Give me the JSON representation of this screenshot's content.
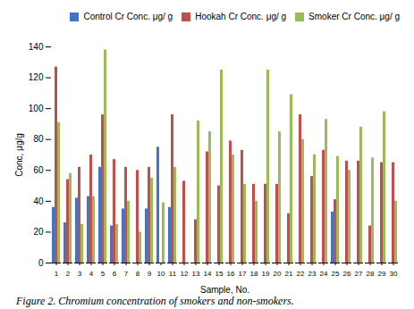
{
  "chart_data": {
    "type": "bar",
    "categories": [
      1,
      2,
      3,
      4,
      5,
      6,
      7,
      8,
      9,
      10,
      11,
      12,
      13,
      14,
      15,
      16,
      17,
      18,
      19,
      20,
      21,
      22,
      23,
      24,
      25,
      26,
      27,
      28,
      29,
      30
    ],
    "series": [
      {
        "name": "Control Cr Conc. μg/ g",
        "color": "#4472C4",
        "values": [
          36,
          26,
          42,
          43,
          62,
          24,
          35,
          0,
          35,
          75,
          36,
          0,
          0,
          0,
          0,
          0,
          0,
          0,
          0,
          0,
          0,
          0,
          0,
          0,
          33,
          0,
          0,
          0,
          0,
          0
        ]
      },
      {
        "name": "Hookah Cr Conc. μg/ g",
        "color": "#C0504D",
        "values": [
          127,
          54,
          62,
          70,
          96,
          67,
          62,
          60,
          62,
          0,
          96,
          53,
          28,
          72,
          50,
          79,
          73,
          51,
          51,
          51,
          32,
          96,
          56,
          73,
          41,
          66,
          66,
          24,
          65,
          65
        ]
      },
      {
        "name": "Smoker Cr Conc. μg/ g",
        "color": "#9BBB59",
        "values": [
          91,
          58,
          25,
          43,
          138,
          25,
          40,
          20,
          55,
          39,
          62,
          0,
          92,
          85,
          125,
          70,
          51,
          40,
          125,
          85,
          109,
          80,
          70,
          93,
          69,
          60,
          88,
          68,
          98,
          40
        ]
      }
    ],
    "xlabel": "Sample, No.",
    "ylabel": "Conc, μg/g",
    "ylim": [
      0,
      140
    ],
    "yticks": [
      0,
      20,
      40,
      60,
      80,
      100,
      120,
      140
    ],
    "grid": false,
    "legend": "upper right",
    "caption": "Figure 2. Chromium concentration of smokers and non-smokers."
  }
}
